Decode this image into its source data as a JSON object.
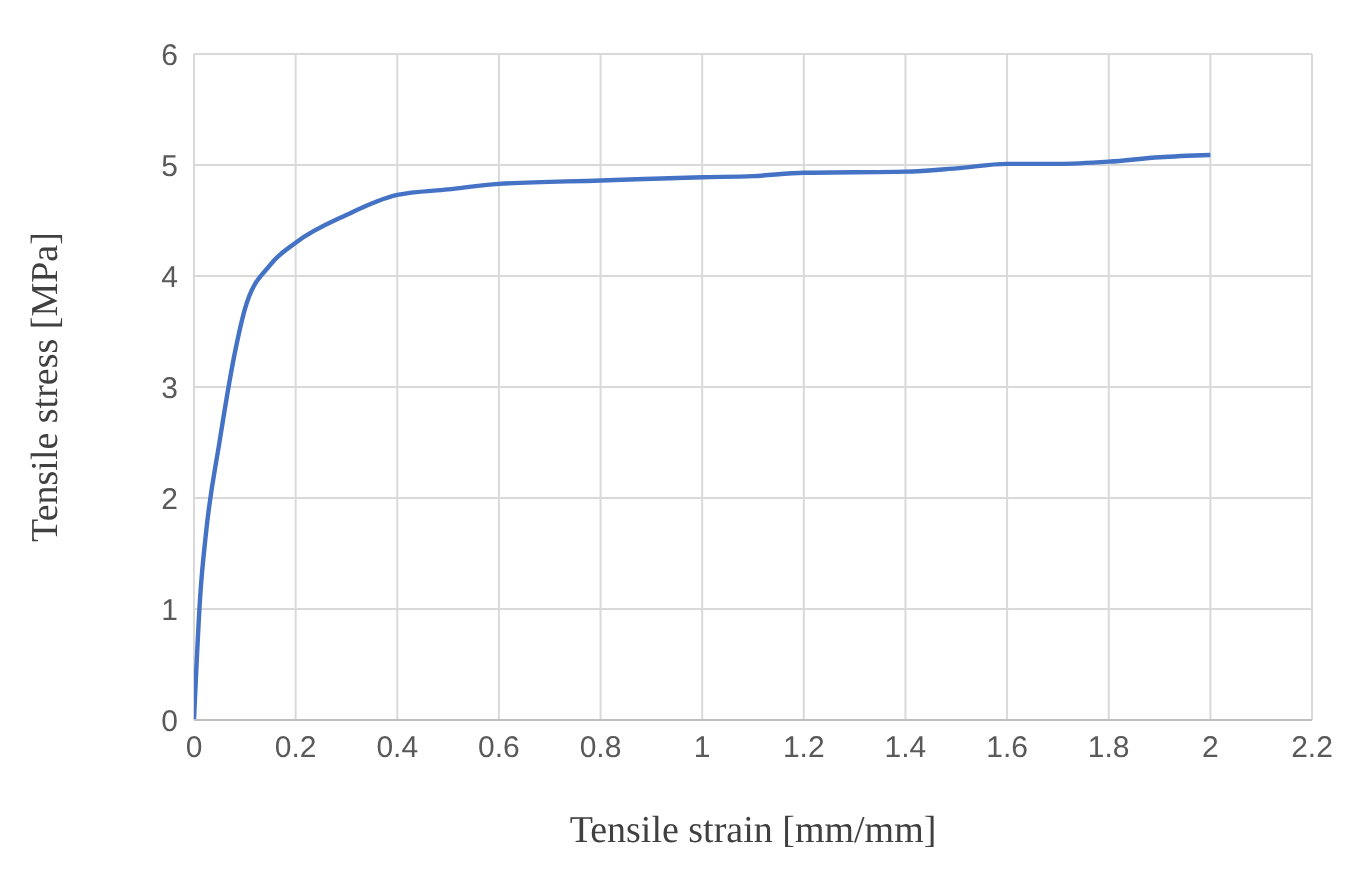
{
  "chart_data": {
    "type": "line",
    "xlabel": "Tensile strain [mm/mm]",
    "ylabel": "Tensile stress [MPa]",
    "x": [
      0,
      0.012,
      0.024,
      0.05,
      0.08,
      0.1,
      0.15,
      0.2,
      0.3,
      0.4,
      0.5,
      0.6,
      0.8,
      1.0,
      1.1,
      1.2,
      1.4,
      1.5,
      1.6,
      1.7,
      1.8,
      1.9,
      2.0
    ],
    "series": [
      {
        "color": "#4472c4",
        "values": [
          0,
          1.1,
          1.7,
          2.5,
          3.3,
          3.7,
          4.1,
          4.3,
          4.55,
          4.73,
          4.78,
          4.83,
          4.86,
          4.89,
          4.9,
          4.93,
          4.94,
          4.97,
          5.01,
          5.01,
          5.03,
          5.07,
          5.09
        ]
      }
    ],
    "xlim": [
      0,
      2.2
    ],
    "xticks": [
      0,
      0.2,
      0.4,
      0.6,
      0.8,
      1,
      1.2,
      1.4,
      1.6,
      1.8,
      2,
      2.2
    ],
    "ylim": [
      0,
      6
    ],
    "yticks": [
      0,
      1,
      2,
      3,
      4,
      5,
      6
    ],
    "grid": true,
    "legend": false,
    "marker": "none",
    "line_style": "solid"
  }
}
